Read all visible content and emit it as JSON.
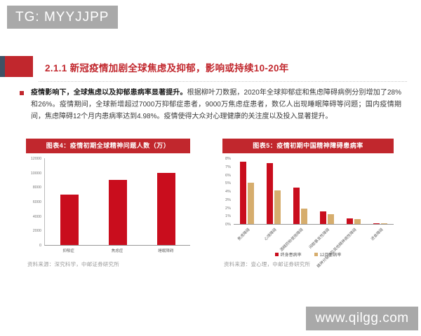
{
  "watermarks": {
    "top": "TG: MYYJJPP",
    "bottom": "www.qilgg.com"
  },
  "colors": {
    "accent_red": "#c1272d",
    "bar_red": "#c90d1d",
    "bar_tan": "#d6ad6d",
    "watermark_gray": "#a9a9a9",
    "title_marker_dark": "#3f5265"
  },
  "title": {
    "text": "2.1.1 新冠疫情加剧全球焦虑及抑郁，影响或持续10-20年"
  },
  "body": {
    "bold": "疫情影响下，全球焦虑以及抑郁患病率显著提升。",
    "regular": "根据柳叶刀数据，2020年全球抑郁症和焦虑障碍病例分别增加了28%和26%。疫情期间，全球新增超过7000万抑郁症患者，9000万焦虑症患者，数亿人出现睡眠障碍等问题；国内疫情期间，焦虑障碍12个月内患病率达到4.98%。疫情使得大众对心理健康的关注度以及投入显著提升。"
  },
  "chart_data": [
    {
      "type": "bar",
      "title": "图表4：疫情初期全球精神问题人数（万）",
      "categories": [
        "抑郁症",
        "焦虑症",
        "睡眠障碍"
      ],
      "values": [
        7000,
        9000,
        10000
      ],
      "ylim": [
        0,
        12000
      ],
      "ytick_step": 2000,
      "unit": "",
      "bar_color": "#c90d1d",
      "grid": false,
      "legend": null,
      "source": "资料来源：深究科学，中邮证券研究所"
    },
    {
      "type": "bar",
      "title": "图表5：疫情初期中国精神障碍患病率",
      "categories": [
        "焦虑障碍",
        "心境障碍",
        "酒精药物使用障碍",
        "间歇暴发性障碍",
        "精神分裂症及其他精神病性障碍",
        "进食障碍"
      ],
      "series": [
        {
          "name": "终身患病率",
          "color": "#c90d1d",
          "values": [
            7.6,
            7.4,
            4.4,
            1.5,
            0.7,
            0.1
          ]
        },
        {
          "name": "12月患病率",
          "color": "#d6ad6d",
          "values": [
            5.0,
            4.1,
            1.9,
            1.2,
            0.6,
            0.1
          ]
        }
      ],
      "ylim": [
        0,
        8
      ],
      "ytick_step": 1,
      "unit": "%",
      "grid": false,
      "legend_position": "bottom",
      "source": "资料来源：壹心理，中邮证券研究所"
    }
  ]
}
